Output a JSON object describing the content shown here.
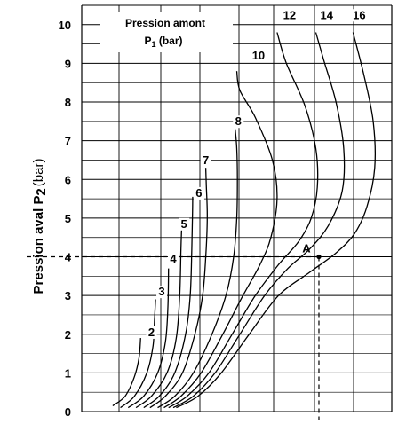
{
  "chart_data": {
    "type": "line",
    "ylabel_bold": "Pression aval P",
    "ylabel_sub": "2",
    "ylabel_unit": "(bar)",
    "ylim": [
      0,
      10.5
    ],
    "yticks": [
      0,
      1,
      2,
      3,
      4,
      5,
      6,
      7,
      8,
      9,
      10
    ],
    "grid": true,
    "annotation": {
      "line1": "Pression amont",
      "line2_main": "P",
      "line2_sub": "1",
      "line2_unit": " (bar)"
    },
    "marker": {
      "label": "A",
      "x": 0.765,
      "y": 4.0
    },
    "series": [
      {
        "name": "2",
        "label_at": [
          0.225,
          1.95
        ],
        "points": [
          [
            0.1,
            0.15
          ],
          [
            0.14,
            0.4
          ],
          [
            0.17,
            0.9
          ],
          [
            0.185,
            1.4
          ],
          [
            0.19,
            1.9
          ]
        ]
      },
      {
        "name": "3",
        "label_at": [
          0.258,
          3.0
        ],
        "points": [
          [
            0.125,
            0.1
          ],
          [
            0.17,
            0.4
          ],
          [
            0.21,
            1.0
          ],
          [
            0.23,
            1.7
          ],
          [
            0.235,
            2.4
          ],
          [
            0.238,
            2.9
          ]
        ]
      },
      {
        "name": "4",
        "label_at": [
          0.295,
          3.85
        ],
        "points": [
          [
            0.15,
            0.1
          ],
          [
            0.2,
            0.4
          ],
          [
            0.245,
            1.0
          ],
          [
            0.27,
            1.8
          ],
          [
            0.278,
            2.7
          ],
          [
            0.28,
            3.7
          ]
        ]
      },
      {
        "name": "5",
        "label_at": [
          0.33,
          4.75
        ],
        "points": [
          [
            0.175,
            0.1
          ],
          [
            0.225,
            0.4
          ],
          [
            0.275,
            1.0
          ],
          [
            0.305,
            1.9
          ],
          [
            0.316,
            3.0
          ],
          [
            0.32,
            4.2
          ],
          [
            0.322,
            4.7
          ]
        ]
      },
      {
        "name": "6",
        "label_at": [
          0.378,
          5.55
        ],
        "points": [
          [
            0.2,
            0.1
          ],
          [
            0.25,
            0.4
          ],
          [
            0.3,
            1.0
          ],
          [
            0.335,
            2.0
          ],
          [
            0.35,
            3.0
          ],
          [
            0.355,
            4.2
          ],
          [
            0.357,
            5.0
          ],
          [
            0.358,
            5.55
          ]
        ]
      },
      {
        "name": "7",
        "label_at": [
          0.4,
          6.4
        ],
        "points": [
          [
            0.22,
            0.1
          ],
          [
            0.27,
            0.4
          ],
          [
            0.325,
            1.0
          ],
          [
            0.365,
            2.0
          ],
          [
            0.39,
            3.0
          ],
          [
            0.4,
            4.0
          ],
          [
            0.405,
            5.0
          ],
          [
            0.402,
            5.8
          ],
          [
            0.4,
            6.3
          ]
        ]
      },
      {
        "name": "8",
        "label_at": [
          0.505,
          7.4
        ],
        "points": [
          [
            0.245,
            0.1
          ],
          [
            0.3,
            0.4
          ],
          [
            0.36,
            1.0
          ],
          [
            0.42,
            2.0
          ],
          [
            0.465,
            3.0
          ],
          [
            0.49,
            4.0
          ],
          [
            0.5,
            5.0
          ],
          [
            0.502,
            6.0
          ],
          [
            0.5,
            6.8
          ],
          [
            0.495,
            7.3
          ]
        ]
      },
      {
        "name": "10",
        "label_at": [
          0.57,
          9.1
        ],
        "points": [
          [
            0.265,
            0.1
          ],
          [
            0.32,
            0.4
          ],
          [
            0.385,
            1.0
          ],
          [
            0.455,
            2.0
          ],
          [
            0.52,
            3.0
          ],
          [
            0.575,
            3.8
          ],
          [
            0.61,
            4.5
          ],
          [
            0.63,
            5.5
          ],
          [
            0.615,
            6.5
          ],
          [
            0.56,
            7.6
          ],
          [
            0.51,
            8.3
          ],
          [
            0.5,
            8.8
          ]
        ]
      },
      {
        "name": "12",
        "label_at": [
          0.67,
          10.15
        ],
        "points": [
          [
            0.28,
            0.1
          ],
          [
            0.34,
            0.4
          ],
          [
            0.41,
            1.0
          ],
          [
            0.485,
            2.0
          ],
          [
            0.56,
            3.0
          ],
          [
            0.635,
            3.8
          ],
          [
            0.7,
            4.4
          ],
          [
            0.74,
            5.0
          ],
          [
            0.76,
            5.8
          ],
          [
            0.755,
            6.8
          ],
          [
            0.72,
            7.9
          ],
          [
            0.66,
            9.0
          ],
          [
            0.63,
            9.8
          ]
        ]
      },
      {
        "name": "14",
        "label_at": [
          0.79,
          10.15
        ],
        "points": [
          [
            0.295,
            0.1
          ],
          [
            0.36,
            0.4
          ],
          [
            0.43,
            1.0
          ],
          [
            0.51,
            2.0
          ],
          [
            0.59,
            3.0
          ],
          [
            0.665,
            3.7
          ],
          [
            0.735,
            4.2
          ],
          [
            0.795,
            4.8
          ],
          [
            0.84,
            5.7
          ],
          [
            0.845,
            6.8
          ],
          [
            0.82,
            8.0
          ],
          [
            0.78,
            9.1
          ],
          [
            0.755,
            9.8
          ]
        ]
      },
      {
        "name": "16",
        "label_at": [
          0.895,
          10.15
        ],
        "points": [
          [
            0.305,
            0.1
          ],
          [
            0.375,
            0.4
          ],
          [
            0.45,
            1.0
          ],
          [
            0.54,
            2.0
          ],
          [
            0.635,
            3.0
          ],
          [
            0.735,
            3.6
          ],
          [
            0.82,
            4.1
          ],
          [
            0.88,
            4.6
          ],
          [
            0.92,
            5.3
          ],
          [
            0.945,
            6.3
          ],
          [
            0.94,
            7.5
          ],
          [
            0.91,
            8.7
          ],
          [
            0.875,
            9.8
          ]
        ]
      }
    ]
  }
}
